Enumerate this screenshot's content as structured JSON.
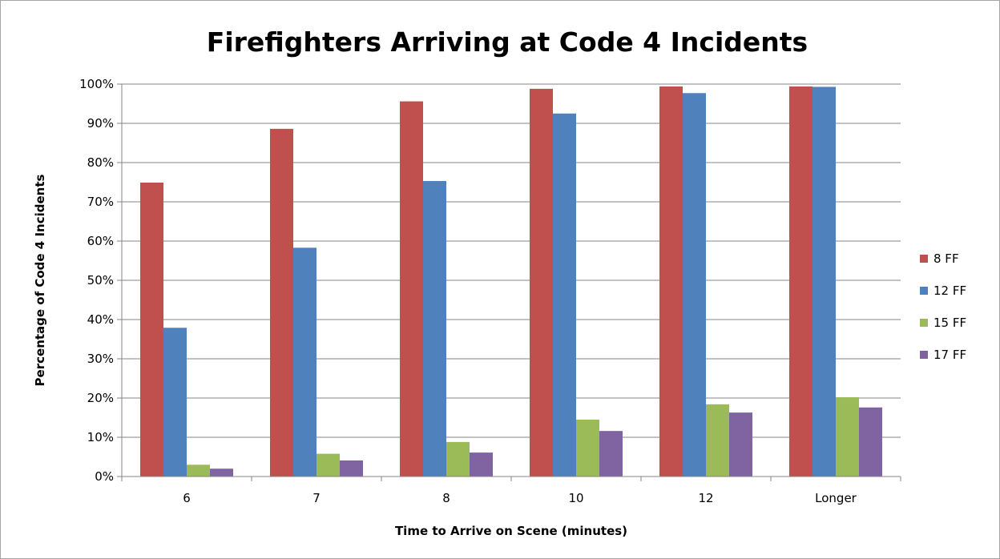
{
  "chart_data": {
    "type": "bar",
    "title": "Firefighters  Arriving at Code 4 Incidents",
    "xlabel": "Time to Arrive on Scene (minutes)",
    "ylabel": "Percentage of Code 4 Incidents",
    "categories": [
      "6",
      "7",
      "8",
      "10",
      "12",
      "Longer"
    ],
    "ylim": [
      0,
      100
    ],
    "yticks": [
      0,
      10,
      20,
      30,
      40,
      50,
      60,
      70,
      80,
      90,
      100
    ],
    "ytick_labels": [
      "0%",
      "10%",
      "20%",
      "30%",
      "40%",
      "50%",
      "60%",
      "70%",
      "80%",
      "90%",
      "100%"
    ],
    "grid": true,
    "legend_position": "right",
    "series": [
      {
        "name": "8 FF",
        "color": "#c0504d",
        "values": [
          74.9,
          88.6,
          95.6,
          98.8,
          99.4,
          99.4
        ]
      },
      {
        "name": "12 FF",
        "color": "#4f81bd",
        "values": [
          37.9,
          58.3,
          75.3,
          92.5,
          97.7,
          99.3
        ]
      },
      {
        "name": "15 FF",
        "color": "#9bbb59",
        "values": [
          3.0,
          5.8,
          8.8,
          14.5,
          18.4,
          20.2
        ]
      },
      {
        "name": "17 FF",
        "color": "#8064a2",
        "values": [
          2.0,
          4.1,
          6.1,
          11.6,
          16.3,
          17.6
        ]
      }
    ]
  }
}
